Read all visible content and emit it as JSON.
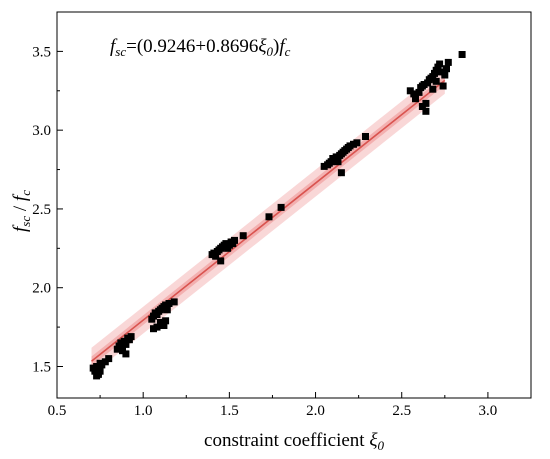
{
  "chart_data": {
    "type": "scatter",
    "title": "",
    "xlabel": "constraint coefficient",
    "xlabel_symbol": "ξ",
    "xlabel_symbol_sub": "0",
    "ylabel_parts": [
      "f",
      "sc",
      " / ",
      "f",
      "c"
    ],
    "xlim": [
      0.5,
      3.25
    ],
    "ylim": [
      1.3,
      3.75
    ],
    "x_ticks": [
      0.5,
      1.0,
      1.5,
      2.0,
      2.5,
      3.0
    ],
    "x_tick_labels": [
      "0.5",
      "1.0",
      "1.5",
      "2.0",
      "2.5",
      "3.0"
    ],
    "y_ticks": [
      1.5,
      2.0,
      2.5,
      3.0,
      3.5
    ],
    "y_tick_labels": [
      "1.5",
      "2.0",
      "2.5",
      "3.0",
      "3.5"
    ],
    "annotation": {
      "parts": [
        {
          "t": "f",
          "style": "italic"
        },
        {
          "t": "sc",
          "style": "italic-sub"
        },
        {
          "t": "=(0.9246+0.8696",
          "style": "normal"
        },
        {
          "t": "ξ",
          "style": "italic"
        },
        {
          "t": "0",
          "style": "italic-sub"
        },
        {
          "t": ")",
          "style": "normal"
        },
        {
          "t": "f",
          "style": "italic"
        },
        {
          "t": "c",
          "style": "italic-sub"
        }
      ]
    },
    "fit": {
      "intercept": 0.9246,
      "slope": 0.8696,
      "x_range": [
        0.7,
        2.75
      ],
      "color": "#d9534f"
    },
    "prediction_band": {
      "halfwidth": 0.085,
      "color": "#f4b6b6"
    },
    "confidence_band": {
      "halfwidth": 0.03,
      "color": "#ef8f8f"
    },
    "marker_color": "#000000",
    "highlight_color": "#cc2222",
    "series": [
      {
        "x": [
          0.71,
          0.72,
          0.73,
          0.74,
          0.75,
          0.73,
          0.74,
          0.76,
          0.78,
          0.8,
          0.72,
          0.75,
          0.85,
          0.86,
          0.87,
          0.88,
          0.89,
          0.9,
          0.91,
          0.92,
          0.93,
          0.88,
          0.9,
          1.05,
          1.06,
          1.07,
          1.08,
          1.09,
          1.1,
          1.11,
          1.12,
          1.13,
          1.14,
          1.08,
          1.1,
          1.12,
          1.15,
          1.18,
          1.06,
          1.13,
          1.4,
          1.41,
          1.42,
          1.43,
          1.44,
          1.45,
          1.46,
          1.47,
          1.48,
          1.49,
          1.5,
          1.51,
          1.52,
          1.53,
          1.58,
          1.45,
          1.73,
          1.8,
          2.05,
          2.07,
          2.08,
          2.09,
          2.1,
          2.11,
          2.12,
          2.13,
          2.14,
          2.15,
          2.16,
          2.17,
          2.18,
          2.19,
          2.2,
          2.22,
          2.24,
          2.29,
          2.15,
          2.55,
          2.57,
          2.58,
          2.6,
          2.61,
          2.62,
          2.63,
          2.64,
          2.65,
          2.66,
          2.67,
          2.68,
          2.69,
          2.7,
          2.71,
          2.72,
          2.74,
          2.75,
          2.76,
          2.77,
          2.85,
          2.62,
          2.64,
          2.68,
          2.7,
          2.73
        ],
        "y": [
          1.49,
          1.47,
          1.5,
          1.46,
          1.52,
          1.44,
          1.45,
          1.51,
          1.53,
          1.55,
          1.48,
          1.47,
          1.61,
          1.63,
          1.65,
          1.62,
          1.66,
          1.64,
          1.68,
          1.67,
          1.69,
          1.6,
          1.58,
          1.8,
          1.82,
          1.84,
          1.83,
          1.85,
          1.86,
          1.87,
          1.88,
          1.89,
          1.86,
          1.75,
          1.78,
          1.76,
          1.9,
          1.91,
          1.74,
          1.79,
          2.21,
          2.22,
          2.2,
          2.23,
          2.24,
          2.25,
          2.26,
          2.27,
          2.28,
          2.25,
          2.27,
          2.29,
          2.28,
          2.3,
          2.33,
          2.17,
          2.45,
          2.51,
          2.77,
          2.78,
          2.79,
          2.8,
          2.82,
          2.81,
          2.83,
          2.8,
          2.84,
          2.85,
          2.86,
          2.87,
          2.88,
          2.89,
          2.9,
          2.91,
          2.92,
          2.96,
          2.73,
          3.25,
          3.23,
          3.2,
          3.24,
          3.27,
          3.28,
          3.29,
          3.17,
          3.3,
          3.32,
          3.33,
          3.34,
          3.36,
          3.38,
          3.4,
          3.42,
          3.28,
          3.35,
          3.39,
          3.43,
          3.48,
          3.15,
          3.12,
          3.26,
          3.31,
          3.37
        ]
      }
    ]
  }
}
